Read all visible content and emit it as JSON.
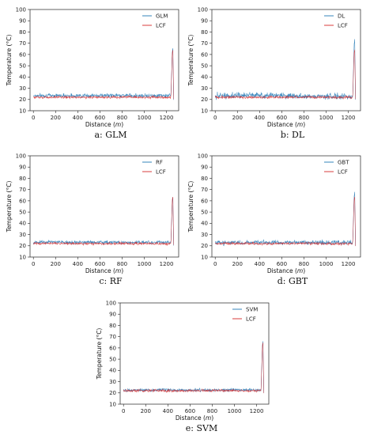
{
  "chart_data": [
    {
      "type": "line",
      "caption": "a: GLM",
      "xlabel": "Distance (m)",
      "ylabel": "Temperature (°C)",
      "xlim": [
        -30,
        1310
      ],
      "ylim": [
        10,
        100
      ],
      "xticks": [
        0,
        200,
        400,
        600,
        800,
        1000,
        1200
      ],
      "yticks": [
        10,
        20,
        30,
        40,
        50,
        60,
        70,
        80,
        90,
        100
      ],
      "legend_position": "top-right",
      "series": [
        {
          "name": "GLM",
          "color": "#1f77b4",
          "x": [
            0,
            200,
            400,
            600,
            800,
            1000,
            1200,
            1240,
            1252,
            1258,
            1265
          ],
          "y": [
            23.5,
            23.6,
            23.4,
            23.5,
            23.6,
            23.5,
            23.4,
            23.5,
            62,
            65,
            20
          ],
          "noise": 2.6
        },
        {
          "name": "LCF",
          "color": "#d62728",
          "x": [
            0,
            200,
            400,
            600,
            800,
            1000,
            1200,
            1240,
            1252,
            1258,
            1265
          ],
          "y": [
            22.0,
            22.1,
            21.9,
            22.0,
            22.1,
            22.0,
            21.9,
            22.0,
            61,
            64,
            20
          ],
          "noise": 1.8
        }
      ]
    },
    {
      "type": "line",
      "caption": "b: DL",
      "xlabel": "Distance (m)",
      "ylabel": "Temperature (°C)",
      "xlim": [
        -30,
        1310
      ],
      "ylim": [
        10,
        100
      ],
      "xticks": [
        0,
        200,
        400,
        600,
        800,
        1000,
        1200
      ],
      "yticks": [
        10,
        20,
        30,
        40,
        50,
        60,
        70,
        80,
        90,
        100
      ],
      "legend_position": "top-right",
      "series": [
        {
          "name": "DL",
          "color": "#1f77b4",
          "x": [
            0,
            200,
            400,
            600,
            800,
            1000,
            1200,
            1240,
            1252,
            1258,
            1265
          ],
          "y": [
            23.0,
            23.5,
            24.0,
            23.5,
            23.0,
            22.8,
            22.5,
            22.8,
            68,
            74,
            20
          ],
          "noise": 4.0
        },
        {
          "name": "LCF",
          "color": "#d62728",
          "x": [
            0,
            200,
            400,
            600,
            800,
            1000,
            1200,
            1240,
            1252,
            1258,
            1265
          ],
          "y": [
            22.0,
            22.1,
            21.9,
            22.0,
            22.1,
            22.0,
            21.9,
            22.0,
            61,
            64,
            20
          ],
          "noise": 1.8
        }
      ]
    },
    {
      "type": "line",
      "caption": "c: RF",
      "xlabel": "Distance (m)",
      "ylabel": "Temperature (°C)",
      "xlim": [
        -30,
        1310
      ],
      "ylim": [
        10,
        100
      ],
      "xticks": [
        0,
        200,
        400,
        600,
        800,
        1000,
        1200
      ],
      "yticks": [
        10,
        20,
        30,
        40,
        50,
        60,
        70,
        80,
        90,
        100
      ],
      "legend_position": "top-right",
      "series": [
        {
          "name": "RF",
          "color": "#1f77b4",
          "x": [
            0,
            200,
            400,
            600,
            800,
            1000,
            1200,
            1240,
            1252,
            1258,
            1265
          ],
          "y": [
            23.0,
            23.2,
            23.0,
            23.1,
            23.0,
            23.1,
            23.0,
            23.0,
            60,
            63,
            20
          ],
          "noise": 2.4
        },
        {
          "name": "LCF",
          "color": "#d62728",
          "x": [
            0,
            200,
            400,
            600,
            800,
            1000,
            1200,
            1240,
            1252,
            1258,
            1265
          ],
          "y": [
            22.0,
            22.1,
            21.9,
            22.0,
            22.1,
            22.0,
            21.9,
            22.0,
            61,
            64,
            20
          ],
          "noise": 1.8
        }
      ]
    },
    {
      "type": "line",
      "caption": "d: GBT",
      "xlabel": "Distance (m)",
      "ylabel": "Temperature (°C)",
      "xlim": [
        -30,
        1310
      ],
      "ylim": [
        10,
        100
      ],
      "xticks": [
        0,
        200,
        400,
        600,
        800,
        1000,
        1200
      ],
      "yticks": [
        10,
        20,
        30,
        40,
        50,
        60,
        70,
        80,
        90,
        100
      ],
      "legend_position": "top-right",
      "series": [
        {
          "name": "GBT",
          "color": "#1f77b4",
          "x": [
            0,
            200,
            400,
            600,
            800,
            1000,
            1200,
            1240,
            1252,
            1258,
            1265
          ],
          "y": [
            22.8,
            23.0,
            22.9,
            23.0,
            22.8,
            23.0,
            22.9,
            23.0,
            64,
            68,
            20
          ],
          "noise": 3.0
        },
        {
          "name": "LCF",
          "color": "#d62728",
          "x": [
            0,
            200,
            400,
            600,
            800,
            1000,
            1200,
            1240,
            1252,
            1258,
            1265
          ],
          "y": [
            22.0,
            22.1,
            21.9,
            22.0,
            22.1,
            22.0,
            21.9,
            22.0,
            61,
            64,
            20
          ],
          "noise": 1.8
        }
      ]
    },
    {
      "type": "line",
      "caption": "e: SVM",
      "xlabel": "Distance (m)",
      "ylabel": "Temperature (°C)",
      "xlim": [
        -30,
        1310
      ],
      "ylim": [
        10,
        100
      ],
      "xticks": [
        0,
        200,
        400,
        600,
        800,
        1000,
        1200
      ],
      "yticks": [
        10,
        20,
        30,
        40,
        50,
        60,
        70,
        80,
        90,
        100
      ],
      "legend_position": "top-right",
      "series": [
        {
          "name": "SVM",
          "color": "#1f77b4",
          "x": [
            0,
            200,
            400,
            600,
            800,
            1000,
            1200,
            1240,
            1252,
            1258,
            1265
          ],
          "y": [
            22.5,
            22.6,
            22.5,
            22.6,
            22.5,
            22.6,
            22.5,
            22.5,
            62,
            66,
            20
          ],
          "noise": 2.2
        },
        {
          "name": "LCF",
          "color": "#d62728",
          "x": [
            0,
            200,
            400,
            600,
            800,
            1000,
            1200,
            1240,
            1252,
            1258,
            1265
          ],
          "y": [
            22.0,
            22.1,
            21.9,
            22.0,
            22.1,
            22.0,
            21.9,
            22.0,
            61,
            64,
            20
          ],
          "noise": 1.8
        }
      ]
    }
  ]
}
